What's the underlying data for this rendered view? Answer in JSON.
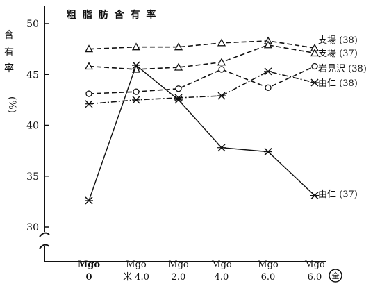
{
  "chart_data": {
    "type": "line",
    "title": "粗 脂 肪 含 有 率",
    "ylabel_chars": [
      "含",
      "有",
      "率",
      "(%)"
    ],
    "yticks": [
      30,
      35,
      40,
      45,
      50
    ],
    "ylim": [
      30,
      50
    ],
    "grid": false,
    "x_categories": [
      {
        "top": "Mgo",
        "bottom": "0",
        "bold": true
      },
      {
        "top": "Mgo",
        "bottom": "米 4.0",
        "bold": false
      },
      {
        "top": "Mgo",
        "bottom": "2.0",
        "bold": false
      },
      {
        "top": "Mgo",
        "bottom": "4.0",
        "bold": false
      },
      {
        "top": "Mgo",
        "bottom": "6.0",
        "bold": false
      },
      {
        "top": "Mgo",
        "bottom": "6.0",
        "bold": false
      }
    ],
    "x_end_mark": "全",
    "series": [
      {
        "name": "支場 (38)",
        "marker": "triangle",
        "dash": "dashed",
        "values": [
          47.5,
          47.7,
          47.7,
          48.1,
          48.3,
          47.6
        ]
      },
      {
        "name": "支場 (37)",
        "marker": "triangle",
        "dash": "dashed",
        "values": [
          45.8,
          45.5,
          45.7,
          46.2,
          47.9,
          47.1
        ]
      },
      {
        "name": "岩見沢 (38)",
        "marker": "circle",
        "dash": "dashed",
        "values": [
          43.1,
          43.3,
          43.6,
          45.5,
          43.7,
          45.8
        ]
      },
      {
        "name": "由仁 (38)",
        "marker": "cross",
        "dash": "dashdot",
        "values": [
          42.1,
          42.5,
          42.7,
          42.9,
          45.3,
          44.2
        ]
      },
      {
        "name": "由仁 (37)",
        "marker": "cross",
        "dash": "solid",
        "values": [
          32.6,
          45.9,
          42.5,
          37.8,
          37.4,
          33.1
        ]
      }
    ]
  }
}
